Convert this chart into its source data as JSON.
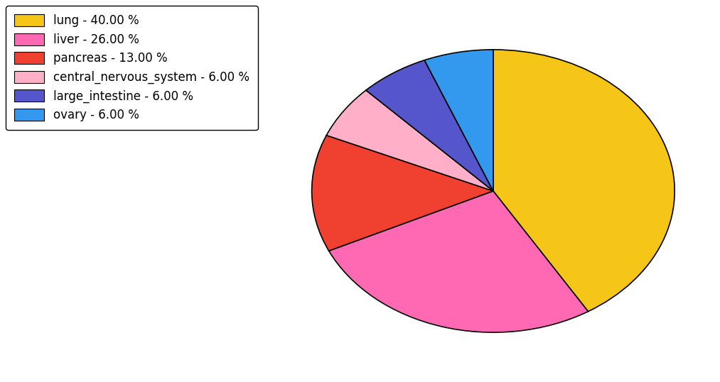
{
  "labels": [
    "lung",
    "liver",
    "pancreas",
    "central_nervous_system",
    "large_intestine",
    "ovary"
  ],
  "values": [
    40.0,
    26.0,
    13.0,
    6.0,
    6.0,
    6.0
  ],
  "colors": [
    "#F5C518",
    "#FF69B4",
    "#F04030",
    "#FFB0C8",
    "#5555CC",
    "#3399EE"
  ],
  "legend_labels": [
    "lung - 40.00 %",
    "liver - 26.00 %",
    "pancreas - 13.00 %",
    "central_nervous_system - 6.00 %",
    "large_intestine - 6.00 %",
    "ovary - 6.00 %"
  ],
  "background_color": "#ffffff",
  "startangle": 90,
  "figsize": [
    10.13,
    5.38
  ],
  "dpi": 100
}
